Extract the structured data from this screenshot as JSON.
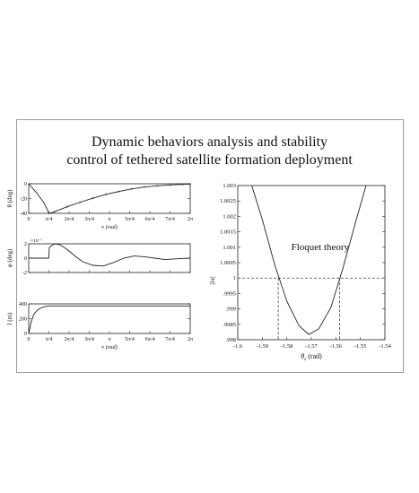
{
  "title": {
    "line1": "Dynamic behaviors analysis and stability",
    "line2": "control of tethered satellite formation deployment"
  },
  "chart_data": [
    {
      "type": "line",
      "panel": "left-top",
      "xlabel": "ν (rad)",
      "ylabel": "θ (deg)",
      "x_tick_labels": [
        "0",
        "π/4",
        "2π/4",
        "3π/4",
        "π",
        "5π/4",
        "6π/4",
        "7π/4",
        "2π"
      ],
      "xlim": [
        0,
        6.2832
      ],
      "ylim": [
        -40,
        0
      ],
      "y_ticks": [
        -40,
        -20,
        0
      ],
      "series": [
        {
          "x": [
            0,
            0.3,
            0.6,
            0.79,
            1.0,
            1.5,
            2.0,
            2.5,
            3.0,
            3.5,
            4.0,
            4.5,
            5.0,
            5.5,
            6.0,
            6.28
          ],
          "y": [
            0,
            -12,
            -26,
            -40,
            -38,
            -31,
            -25,
            -19.5,
            -14.5,
            -10.5,
            -7,
            -4.5,
            -2.8,
            -1.6,
            -0.8,
            -0.5
          ]
        }
      ]
    },
    {
      "type": "line",
      "panel": "left-middle",
      "xlabel": "ν (rad)",
      "ylabel": "φ (deg)",
      "multiplier": "×10⁻⁷",
      "xlim": [
        0,
        6.2832
      ],
      "ylim": [
        -2,
        2
      ],
      "y_ticks": [
        -2,
        0,
        2
      ],
      "series": [
        {
          "x": [
            0,
            0.78,
            0.8,
            1.0,
            1.2,
            1.5,
            1.8,
            2.1,
            2.5,
            2.9,
            3.3,
            3.7,
            4.1,
            4.5,
            4.9,
            5.3,
            5.7,
            6.28
          ],
          "y": [
            0,
            0,
            1.5,
            2.0,
            1.9,
            1.2,
            0.3,
            -0.5,
            -1.0,
            -1.1,
            -0.6,
            0.0,
            0.3,
            0.2,
            0.0,
            -0.2,
            -0.1,
            0.0
          ]
        }
      ]
    },
    {
      "type": "line",
      "panel": "left-bottom",
      "xlabel": "ν (rad)",
      "ylabel": "l (m)",
      "x_tick_labels": [
        "0",
        "π/4",
        "2π/4",
        "3π/4",
        "π",
        "5π/4",
        "6π/4",
        "7π/4",
        "2π"
      ],
      "xlim": [
        0,
        6.2832
      ],
      "ylim": [
        0,
        400
      ],
      "y_ticks": [
        0,
        200,
        400
      ],
      "series": [
        {
          "x": [
            0,
            0.1,
            0.2,
            0.35,
            0.5,
            0.65,
            0.79,
            1.0,
            2.0,
            3.0,
            4.0,
            5.0,
            6.28
          ],
          "y": [
            0,
            160,
            260,
            320,
            350,
            365,
            372,
            372,
            372,
            372,
            372,
            372,
            372
          ]
        }
      ]
    },
    {
      "type": "line",
      "panel": "right",
      "annotation": "Floquet theory",
      "xlabel": "θs (rad)",
      "ylabel": "|λr|",
      "x_ticks": [
        -1.6,
        -1.59,
        -1.58,
        -1.57,
        -1.56,
        -1.55,
        -1.54
      ],
      "y_ticks": [
        0.998,
        0.9985,
        0.999,
        0.9995,
        1,
        1.0005,
        1.001,
        1.0015,
        1.002,
        1.0025,
        1.003
      ],
      "xlim": [
        -1.6,
        -1.54
      ],
      "ylim": [
        0.998,
        1.003
      ],
      "reference_line_y": 1,
      "crossings_x": [
        -1.5835,
        -1.5585
      ],
      "series": [
        {
          "x": [
            -1.5943,
            -1.59,
            -1.585,
            -1.58,
            -1.575,
            -1.571,
            -1.567,
            -1.562,
            -1.557,
            -1.552,
            -1.5477
          ],
          "y": [
            1.003,
            1.0019,
            1.00045,
            0.99925,
            0.99845,
            0.99817,
            0.99835,
            0.99905,
            1.00035,
            1.0018,
            1.003
          ]
        }
      ]
    }
  ]
}
